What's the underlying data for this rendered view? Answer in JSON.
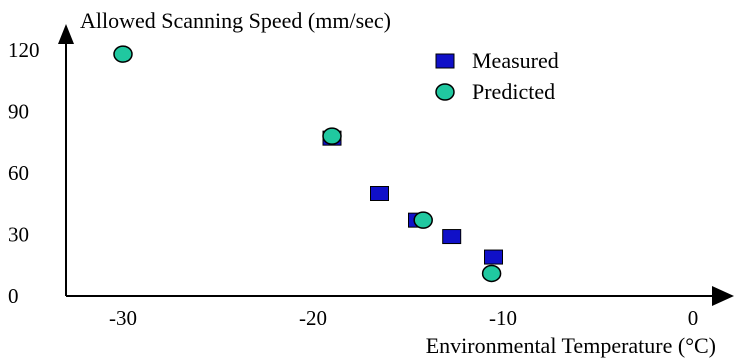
{
  "chart_data": {
    "type": "scatter",
    "title": "",
    "ylabel": "Allowed Scanning Speed (mm/sec)",
    "xlabel": "Environmental Temperature (°C)",
    "xlim": [
      -33,
      0
    ],
    "ylim": [
      0,
      125
    ],
    "x_ticks": [
      -30,
      -20,
      -10,
      0
    ],
    "y_ticks": [
      0,
      30,
      60,
      90,
      120
    ],
    "grid": false,
    "legend": "top-right",
    "series": [
      {
        "name": "Measured",
        "marker": "square",
        "color": "#1010c8",
        "points": [
          {
            "x": -19.0,
            "y": 77
          },
          {
            "x": -16.5,
            "y": 50
          },
          {
            "x": -14.5,
            "y": 37
          },
          {
            "x": -12.7,
            "y": 29
          },
          {
            "x": -10.5,
            "y": 19
          }
        ]
      },
      {
        "name": "Predicted",
        "marker": "circle",
        "color": "#20c8a0",
        "points": [
          {
            "x": -30.0,
            "y": 118
          },
          {
            "x": -19.0,
            "y": 78
          },
          {
            "x": -14.2,
            "y": 37
          },
          {
            "x": -10.6,
            "y": 11
          }
        ]
      }
    ]
  }
}
